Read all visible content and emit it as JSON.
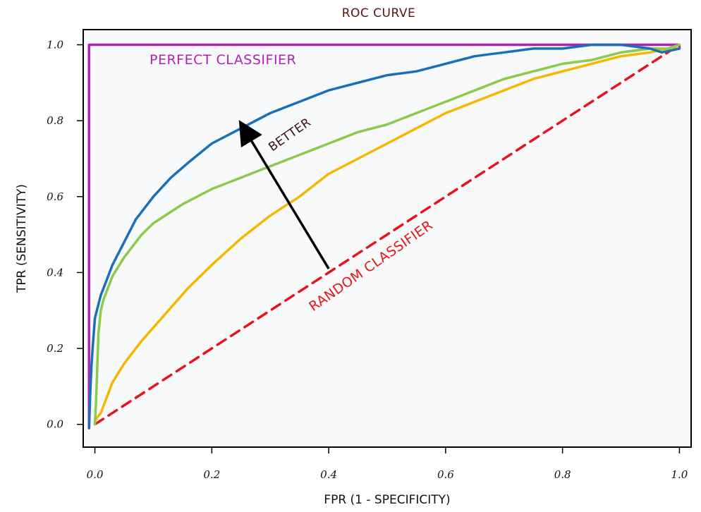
{
  "chart_data": {
    "type": "line",
    "title": "ROC CURVE",
    "xlabel": "FPR (1 - SPECIFICITY)",
    "ylabel": "TPR (SENSITIVITY)",
    "xlim": [
      -0.02,
      1.02
    ],
    "ylim": [
      -0.06,
      1.04
    ],
    "xticks": [
      "0.0",
      "0.2",
      "0.4",
      "0.6",
      "0.8",
      "1.0"
    ],
    "xtick_values": [
      0.0,
      0.2,
      0.4,
      0.6,
      0.8,
      1.0
    ],
    "yticks": [
      "0.0",
      "0.2",
      "0.4",
      "0.6",
      "0.8",
      "1.0"
    ],
    "ytick_values": [
      0.0,
      0.2,
      0.4,
      0.6,
      0.8,
      1.0
    ],
    "grid": false,
    "plot_background": "#f7f9fb",
    "series": [
      {
        "name": "",
        "color": "#b024b4",
        "style": "solid",
        "x": [
          -0.01,
          -0.01,
          1.0,
          1.0
        ],
        "y": [
          -0.01,
          1.0,
          1.0,
          0.99
        ]
      },
      {
        "name": "",
        "color": "#e8141a",
        "style": "dashed",
        "x": [
          0.0,
          1.0
        ],
        "y": [
          0.0,
          1.0
        ]
      },
      {
        "name": "",
        "color": "#f5b800",
        "style": "solid",
        "x": [
          0.0,
          0.01,
          0.02,
          0.03,
          0.05,
          0.08,
          0.12,
          0.16,
          0.2,
          0.25,
          0.3,
          0.35,
          0.4,
          0.45,
          0.5,
          0.55,
          0.6,
          0.65,
          0.7,
          0.75,
          0.8,
          0.85,
          0.9,
          0.95,
          0.98,
          1.0
        ],
        "y": [
          0.01,
          0.03,
          0.07,
          0.11,
          0.16,
          0.22,
          0.29,
          0.36,
          0.42,
          0.49,
          0.55,
          0.6,
          0.66,
          0.7,
          0.74,
          0.78,
          0.82,
          0.85,
          0.88,
          0.91,
          0.93,
          0.95,
          0.97,
          0.98,
          0.99,
          0.99
        ]
      },
      {
        "name": "",
        "color": "#8acb4b",
        "style": "solid",
        "x": [
          0.0,
          0.002,
          0.004,
          0.006,
          0.01,
          0.015,
          0.02,
          0.03,
          0.05,
          0.08,
          0.1,
          0.15,
          0.2,
          0.25,
          0.3,
          0.35,
          0.4,
          0.45,
          0.5,
          0.55,
          0.6,
          0.65,
          0.7,
          0.75,
          0.8,
          0.85,
          0.9,
          0.95,
          0.98,
          1.0
        ],
        "y": [
          0.0,
          0.06,
          0.15,
          0.24,
          0.3,
          0.33,
          0.35,
          0.39,
          0.44,
          0.5,
          0.53,
          0.58,
          0.62,
          0.65,
          0.68,
          0.71,
          0.74,
          0.77,
          0.79,
          0.82,
          0.85,
          0.88,
          0.91,
          0.93,
          0.95,
          0.96,
          0.98,
          0.99,
          0.99,
          1.0
        ]
      },
      {
        "name": "",
        "color": "#1a70b8",
        "style": "solid",
        "x": [
          -0.01,
          -0.008,
          -0.006,
          -0.004,
          0.0,
          0.005,
          0.01,
          0.02,
          0.03,
          0.05,
          0.07,
          0.1,
          0.13,
          0.16,
          0.2,
          0.25,
          0.3,
          0.35,
          0.4,
          0.45,
          0.5,
          0.55,
          0.6,
          0.65,
          0.7,
          0.75,
          0.8,
          0.85,
          0.9,
          0.95,
          0.97,
          1.0
        ],
        "y": [
          -0.01,
          0.08,
          0.15,
          0.2,
          0.28,
          0.31,
          0.34,
          0.38,
          0.42,
          0.48,
          0.54,
          0.6,
          0.65,
          0.69,
          0.74,
          0.78,
          0.82,
          0.85,
          0.88,
          0.9,
          0.92,
          0.93,
          0.95,
          0.97,
          0.98,
          0.99,
          0.99,
          1.0,
          1.0,
          0.99,
          0.98,
          0.99
        ]
      }
    ],
    "annotations": {
      "perfect": "PERFECT CLASSIFIER",
      "random": "RANDOM CLASSIFIER",
      "better": "BETTER"
    },
    "arrow": {
      "from": [
        0.4,
        0.41
      ],
      "to": [
        0.25,
        0.8
      ],
      "color": "#000000"
    }
  }
}
